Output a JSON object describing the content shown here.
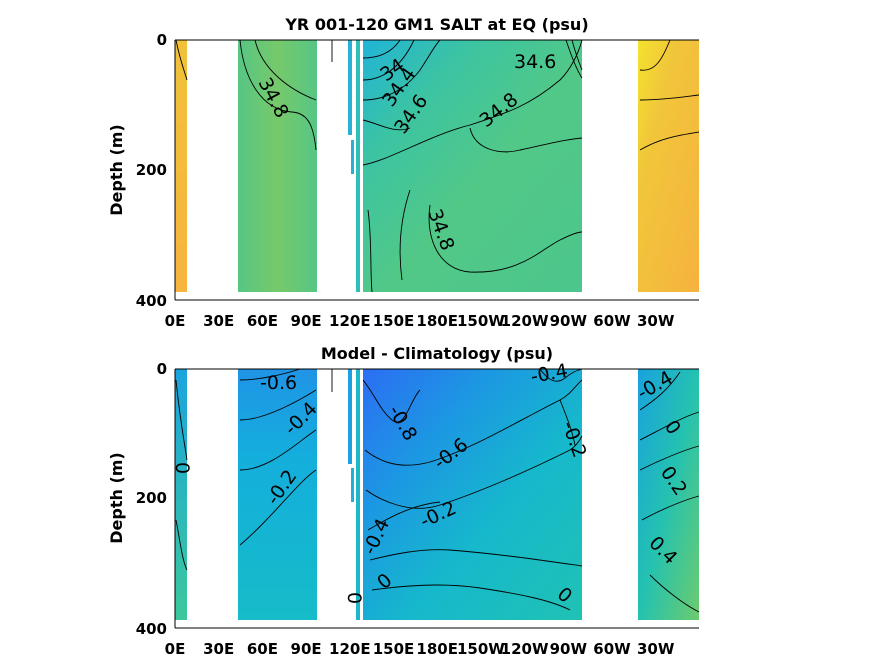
{
  "chart_data": [
    {
      "type": "heatmap",
      "title": "YR 001-120 GM1 SALT at EQ (psu)",
      "ylabel": "Depth (m)",
      "ylim": [
        400,
        0
      ],
      "y_ticks": [
        "0",
        "200",
        "400"
      ],
      "x_ticks": [
        "0E",
        "30E",
        "60E",
        "90E",
        "120E",
        "150E",
        "180E",
        "150W",
        "120W",
        "90W",
        "60W",
        "30W"
      ],
      "colormap": [
        "#2a6cf5",
        "#14a8de",
        "#16bec4",
        "#4cca8e",
        "#5cc881",
        "#7fcb62",
        "#e8c33c",
        "#f6b640",
        "#f5e62c"
      ],
      "contour_labels": [
        "34.8",
        "34",
        "34.4",
        "34.6",
        "34.8",
        "34.6",
        "34.8"
      ]
    },
    {
      "type": "heatmap",
      "title": "Model - Climatology (psu)",
      "ylabel": "Depth (m)",
      "ylim": [
        400,
        0
      ],
      "y_ticks": [
        "0",
        "200",
        "400"
      ],
      "x_ticks": [
        "0E",
        "30E",
        "60E",
        "90E",
        "120E",
        "150E",
        "180E",
        "150W",
        "120W",
        "90W",
        "60W",
        "30W"
      ],
      "contour_labels": [
        "-0.6",
        "-0.4",
        "0",
        "-0.2",
        "-0.8",
        "-0.6",
        "-0.2",
        "-0.4",
        "0",
        "0",
        "-0.4",
        "-0.2",
        "0",
        "-0.4",
        "0",
        "0.2",
        "0.4"
      ]
    }
  ]
}
